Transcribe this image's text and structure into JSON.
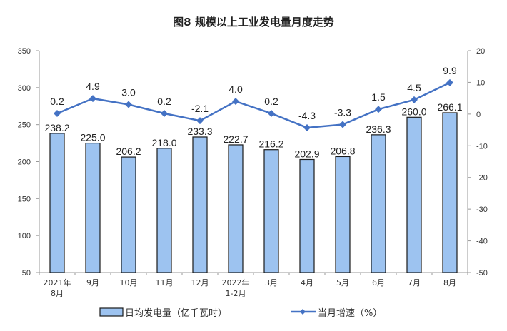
{
  "chart_data": {
    "type": "bar+line",
    "title": "图8  规模以上工业发电量月度走势",
    "categories": [
      "2021年\n8月",
      "9月",
      "10月",
      "11月",
      "12月",
      "2022年\n1-2月",
      "3月",
      "4月",
      "5月",
      "6月",
      "7月",
      "8月"
    ],
    "series": [
      {
        "name": "日均发电量（亿千瓦时）",
        "type": "bar",
        "axis": "left",
        "color": "#9DC3F0",
        "values": [
          238.2,
          225.0,
          206.2,
          218.0,
          233.3,
          222.7,
          216.2,
          202.9,
          206.8,
          236.3,
          260.0,
          266.1
        ]
      },
      {
        "name": "当月增速（%）",
        "type": "line",
        "axis": "right",
        "color": "#4472C4",
        "values": [
          0.2,
          4.9,
          3.0,
          0.2,
          -2.1,
          4.0,
          0.2,
          -4.3,
          -3.3,
          1.5,
          4.5,
          9.9
        ]
      }
    ],
    "left_axis": {
      "range": [
        50,
        350
      ],
      "ticks": [
        50,
        100,
        150,
        200,
        250,
        300,
        350
      ]
    },
    "right_axis": {
      "range": [
        -50,
        20
      ],
      "ticks": [
        -50,
        -40,
        -30,
        -20,
        -10,
        0,
        10,
        20
      ]
    },
    "legend_placement": "bottom",
    "grid": false
  }
}
